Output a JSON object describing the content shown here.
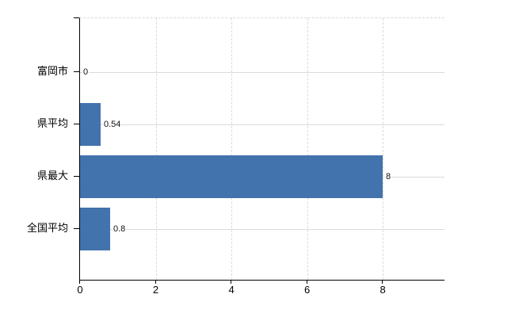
{
  "chart_data": {
    "type": "bar",
    "orientation": "horizontal",
    "title": "",
    "categories": [
      "富岡市",
      "県平均",
      "県最大",
      "全国平均"
    ],
    "values": [
      0,
      0.54,
      8,
      0.8
    ],
    "value_labels": [
      "0",
      "0.54",
      "8",
      "0.8"
    ],
    "x_ticks": [
      0,
      2,
      4,
      6,
      8
    ],
    "xlim": [
      0,
      9.63
    ],
    "grid": true,
    "legend": false,
    "colors": {
      "bar": "#4273ac",
      "h_gridline": "#d6ddd6",
      "v_gridline": "#d9d9d9",
      "axis": "#000000",
      "value_label_text": "#111111",
      "tick_label_text": "#000000"
    }
  }
}
